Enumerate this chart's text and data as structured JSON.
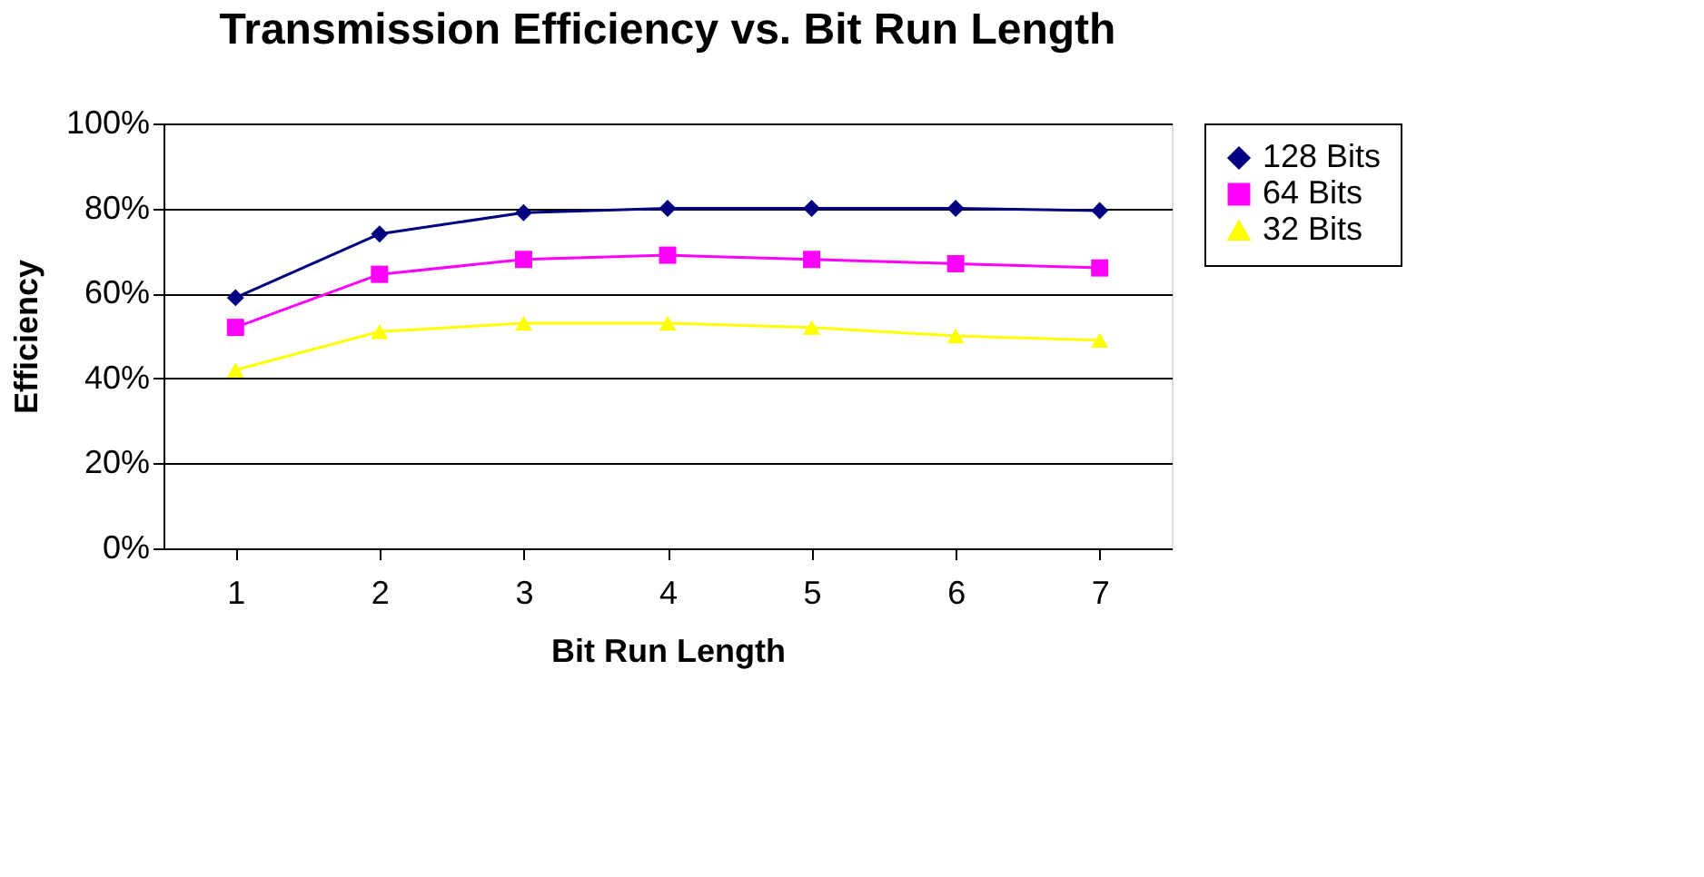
{
  "chart_data": {
    "type": "line",
    "title": "Transmission Efficiency vs. Bit Run Length",
    "xlabel": "Bit Run Length",
    "ylabel": "Efficiency",
    "categories": [
      "1",
      "2",
      "3",
      "4",
      "5",
      "6",
      "7"
    ],
    "series": [
      {
        "name": "128 Bits",
        "color": "#000080",
        "marker": "diamond",
        "values": [
          59,
          74,
          79,
          80,
          80,
          80,
          79.5
        ]
      },
      {
        "name": "64 Bits",
        "color": "#ff00ff",
        "marker": "square",
        "values": [
          52,
          64.5,
          68,
          69,
          68,
          67,
          66
        ]
      },
      {
        "name": "32 Bits",
        "color": "#ffff00",
        "marker": "triangle",
        "values": [
          42,
          51,
          53,
          53,
          52,
          50,
          49
        ]
      }
    ],
    "ylim": [
      0,
      100
    ],
    "yticks": [
      {
        "value": 0,
        "label": "0%"
      },
      {
        "value": 20,
        "label": "20%"
      },
      {
        "value": 40,
        "label": "40%"
      },
      {
        "value": 60,
        "label": "60%"
      },
      {
        "value": 80,
        "label": "80%"
      },
      {
        "value": 100,
        "label": "100%"
      }
    ],
    "grid": "y",
    "legend": "right",
    "line_style": "solid"
  }
}
